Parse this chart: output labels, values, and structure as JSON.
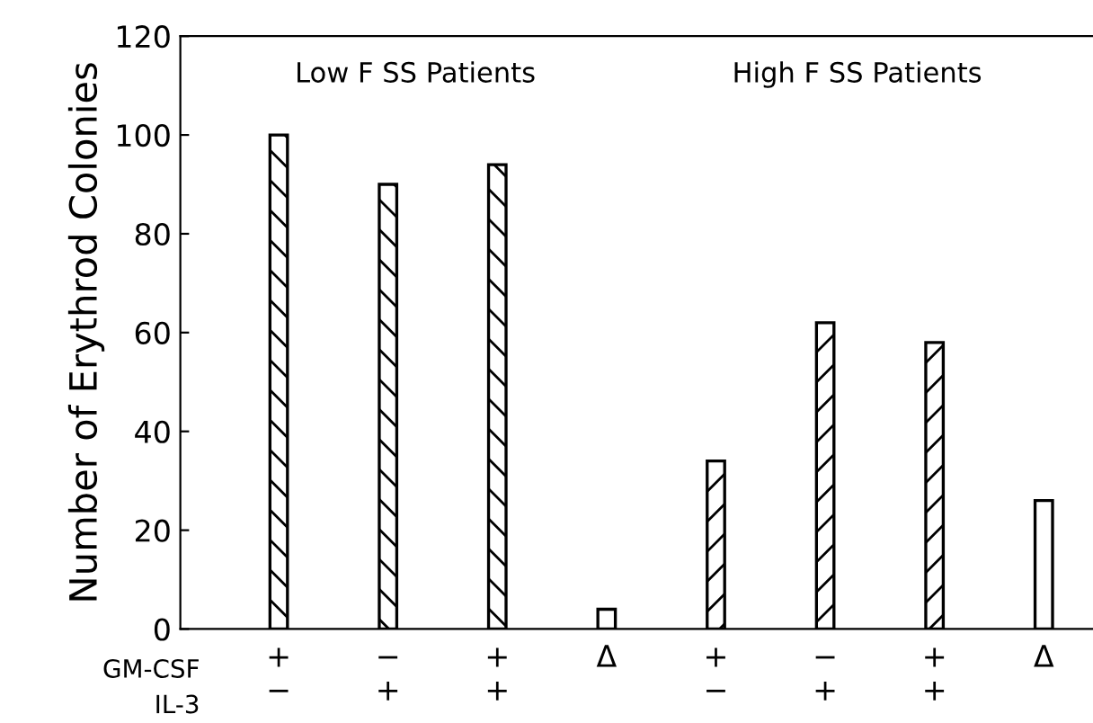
{
  "chart_data": {
    "type": "bar",
    "ylabel": "Number of Erythrod Colonies",
    "categories": [
      "+\n−",
      "−\n+",
      "+\n+",
      "Δ",
      "+\n−",
      "−\n+",
      "+\n+",
      "Δ"
    ],
    "series": [
      {
        "color": "#000000",
        "values": [
          100,
          90,
          94,
          null,
          null,
          null,
          null,
          null
        ]
      },
      {
        "color": "#ffffff",
        "values": [
          null,
          null,
          null,
          4,
          null,
          null,
          null,
          26
        ]
      },
      {
        "color": "#000000",
        "values": [
          null,
          null,
          null,
          null,
          34,
          62,
          58,
          null
        ]
      }
    ],
    "ylim": [
      0,
      120
    ],
    "yticks": [
      0,
      20,
      40,
      60,
      80,
      100,
      120
    ],
    "grid": false,
    "legend": false,
    "annotations": [
      "Low F SS Patients",
      "High F SS Patients",
      "GM-CSF\nIL-3"
    ]
  }
}
